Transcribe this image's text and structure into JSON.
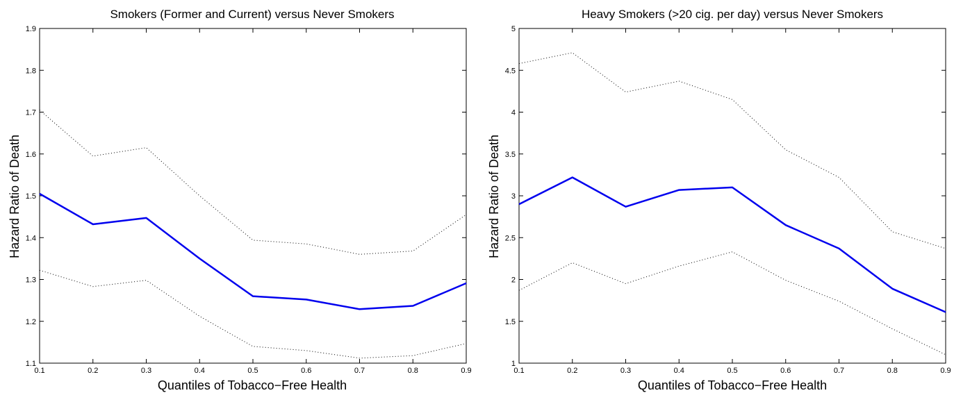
{
  "chart_data": [
    {
      "type": "line",
      "title": "Smokers (Former and Current) versus Never Smokers",
      "xlabel": "Quantiles of Tobacco−Free Health",
      "ylabel": "Hazard Ratio of Death",
      "xlim": [
        0.1,
        0.9
      ],
      "ylim": [
        1.1,
        1.9
      ],
      "xticks": [
        "0.1",
        "0.2",
        "0.3",
        "0.4",
        "0.5",
        "0.6",
        "0.7",
        "0.8",
        "0.9"
      ],
      "yticks": [
        "1.1",
        "1.2",
        "1.3",
        "1.4",
        "1.5",
        "1.6",
        "1.7",
        "1.8",
        "1.9"
      ],
      "x": [
        0.1,
        0.2,
        0.3,
        0.4,
        0.5,
        0.6,
        0.7,
        0.8,
        0.9
      ],
      "grid": false,
      "series": [
        {
          "role": "estimate",
          "values": [
            1.505,
            1.432,
            1.447,
            1.35,
            1.26,
            1.252,
            1.229,
            1.237,
            1.291
          ],
          "color": "#0000ee",
          "style": "solid"
        },
        {
          "role": "upper-bound",
          "values": [
            1.705,
            1.595,
            1.615,
            1.5,
            1.394,
            1.385,
            1.36,
            1.368,
            1.455
          ],
          "color": "#000000",
          "style": "dotted"
        },
        {
          "role": "lower-bound",
          "values": [
            1.322,
            1.283,
            1.298,
            1.212,
            1.14,
            1.13,
            1.112,
            1.118,
            1.147
          ],
          "color": "#000000",
          "style": "dotted"
        }
      ]
    },
    {
      "type": "line",
      "title": "Heavy Smokers (>20 cig. per day) versus Never Smokers",
      "xlabel": "Quantiles of Tobacco−Free Health",
      "ylabel": "Hazard Ratio of Death",
      "xlim": [
        0.1,
        0.9
      ],
      "ylim": [
        1,
        5
      ],
      "xticks": [
        "0.1",
        "0.2",
        "0.3",
        "0.4",
        "0.5",
        "0.6",
        "0.7",
        "0.8",
        "0.9"
      ],
      "yticks": [
        "1",
        "1.5",
        "2",
        "2.5",
        "3",
        "3.5",
        "4",
        "4.5",
        "5"
      ],
      "x": [
        0.1,
        0.2,
        0.3,
        0.4,
        0.5,
        0.6,
        0.7,
        0.8,
        0.9
      ],
      "grid": false,
      "series": [
        {
          "role": "estimate",
          "values": [
            2.9,
            3.22,
            2.87,
            3.07,
            3.1,
            2.65,
            2.37,
            1.89,
            1.61
          ],
          "color": "#0000ee",
          "style": "solid"
        },
        {
          "role": "upper-bound",
          "values": [
            4.58,
            4.71,
            4.24,
            4.37,
            4.15,
            3.55,
            3.22,
            2.57,
            2.37
          ],
          "color": "#000000",
          "style": "dotted"
        },
        {
          "role": "lower-bound",
          "values": [
            1.87,
            2.2,
            1.95,
            2.16,
            2.33,
            1.99,
            1.74,
            1.41,
            1.1
          ],
          "color": "#000000",
          "style": "dotted"
        }
      ]
    }
  ]
}
